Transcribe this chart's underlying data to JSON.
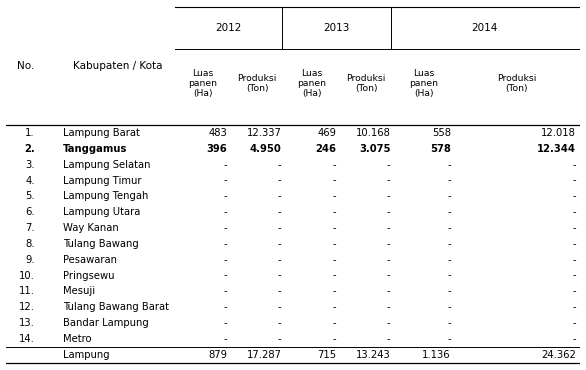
{
  "years": [
    "2012",
    "2013",
    "2014"
  ],
  "col_headers_line1": [
    "Luas",
    "Produksi",
    "Luas",
    "Produksi",
    "Luas",
    "Produksi"
  ],
  "col_headers_line2": [
    "panen",
    "(Ton)",
    "panen",
    "(Ton)",
    "panen",
    "(Ton)"
  ],
  "col_headers_line3": [
    "(Ha)",
    "",
    "(Ha)",
    "",
    "(Ha)",
    ""
  ],
  "row_no": [
    "1.",
    "2.",
    "3.",
    "4.",
    "5.",
    "6.",
    "7.",
    "8.",
    "9.",
    "10.",
    "11.",
    "12.",
    "13.",
    "14.",
    ""
  ],
  "row_names": [
    "Lampung Barat",
    "Tanggamus",
    "Lampung Selatan",
    "Lampung Timur",
    "Lampung Tengah",
    "Lampung Utara",
    "Way Kanan",
    "Tulang Bawang",
    "Pesawaran",
    "Pringsewu",
    "Mesuji",
    "Tulang Bawang Barat",
    "Bandar Lampung",
    "Metro",
    "Lampung"
  ],
  "bold_rows": [
    1
  ],
  "data": [
    [
      "483",
      "12.337",
      "469",
      "10.168",
      "558",
      "12.018"
    ],
    [
      "396",
      "4.950",
      "246",
      "3.075",
      "578",
      "12.344"
    ],
    [
      "-",
      "-",
      "-",
      "-",
      "-",
      "-"
    ],
    [
      "-",
      "-",
      "-",
      "-",
      "-",
      "-"
    ],
    [
      "-",
      "-",
      "-",
      "-",
      "-",
      "-"
    ],
    [
      "-",
      "-",
      "-",
      "-",
      "-",
      "-"
    ],
    [
      "-",
      "-",
      "-",
      "-",
      "-",
      "-"
    ],
    [
      "-",
      "-",
      "-",
      "-",
      "-",
      "-"
    ],
    [
      "-",
      "-",
      "-",
      "-",
      "-",
      "-"
    ],
    [
      "-",
      "-",
      "-",
      "-",
      "-",
      "-"
    ],
    [
      "-",
      "-",
      "-",
      "-",
      "-",
      "-"
    ],
    [
      "-",
      "-",
      "-",
      "-",
      "-",
      "-"
    ],
    [
      "-",
      "-",
      "-",
      "-",
      "-",
      "-"
    ],
    [
      "-",
      "-",
      "-",
      "-",
      "-",
      "-"
    ],
    [
      "879",
      "17.287",
      "715",
      "13.243",
      "1.136",
      "24.362"
    ]
  ],
  "bg_color": "#ffffff",
  "text_color": "#000000",
  "line_color": "#000000",
  "font_size": 7.2,
  "header_font_size": 7.5
}
